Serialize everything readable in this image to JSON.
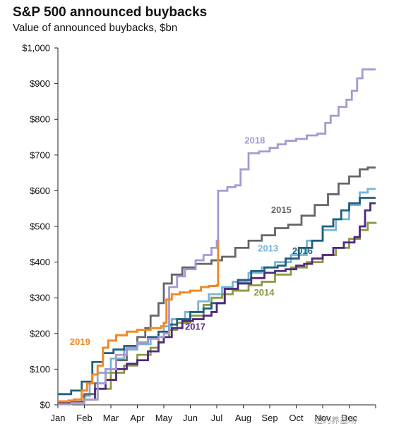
{
  "chart_data": {
    "type": "line",
    "title": "S&P 500 announced buybacks",
    "subtitle": "Value of announced buybacks, $bn",
    "xlabel": "",
    "ylabel": "",
    "x_ticks": [
      "Jan",
      "Feb",
      "Mar",
      "Apr",
      "May",
      "Jun",
      "Jul",
      "Aug",
      "Sep",
      "Oct",
      "Nov",
      "Dec"
    ],
    "y_ticks": [
      "$0",
      "$100",
      "$200",
      "$300",
      "$400",
      "$500",
      "$600",
      "$700",
      "$800",
      "$900",
      "$1,000"
    ],
    "xlim": [
      0,
      12
    ],
    "ylim": [
      0,
      1000
    ],
    "grid": false,
    "series": [
      {
        "name": "2013",
        "color": "#79b5d3",
        "label_pos": [
          7.55,
          430
        ],
        "points": [
          [
            0,
            5
          ],
          [
            0.5,
            8
          ],
          [
            0.9,
            25
          ],
          [
            1.2,
            60
          ],
          [
            1.5,
            90
          ],
          [
            2,
            130
          ],
          [
            2.5,
            155
          ],
          [
            3,
            170
          ],
          [
            3.5,
            190
          ],
          [
            3.8,
            205
          ],
          [
            4,
            220
          ],
          [
            4.3,
            240
          ],
          [
            4.8,
            260
          ],
          [
            5.3,
            290
          ],
          [
            5.7,
            310
          ],
          [
            6.2,
            330
          ],
          [
            6.6,
            345
          ],
          [
            7.2,
            370
          ],
          [
            7.7,
            385
          ],
          [
            8.2,
            400
          ],
          [
            8.8,
            420
          ],
          [
            9.4,
            460
          ],
          [
            10,
            490
          ],
          [
            10.5,
            520
          ],
          [
            11,
            560
          ],
          [
            11.4,
            595
          ],
          [
            11.7,
            605
          ],
          [
            12,
            605
          ]
        ]
      },
      {
        "name": "2014",
        "color": "#8d9a44",
        "label_pos": [
          7.4,
          306
        ],
        "points": [
          [
            0,
            5
          ],
          [
            0.5,
            6
          ],
          [
            1,
            15
          ],
          [
            1.5,
            45
          ],
          [
            2,
            90
          ],
          [
            2.5,
            110
          ],
          [
            3,
            140
          ],
          [
            3.5,
            160
          ],
          [
            3.8,
            190
          ],
          [
            4.2,
            210
          ],
          [
            4.5,
            230
          ],
          [
            5,
            250
          ],
          [
            5.5,
            280
          ],
          [
            5.8,
            300
          ],
          [
            6.2,
            310
          ],
          [
            6.6,
            320
          ],
          [
            7.2,
            335
          ],
          [
            7.7,
            345
          ],
          [
            8.2,
            365
          ],
          [
            8.8,
            385
          ],
          [
            9.4,
            400
          ],
          [
            10,
            420
          ],
          [
            10.5,
            440
          ],
          [
            11,
            465
          ],
          [
            11.4,
            490
          ],
          [
            11.7,
            510
          ],
          [
            12,
            512
          ]
        ]
      },
      {
        "name": "2015",
        "color": "#666666",
        "label_pos": [
          8.05,
          538
        ],
        "points": [
          [
            0,
            5
          ],
          [
            0.5,
            8
          ],
          [
            1,
            30
          ],
          [
            1.4,
            60
          ],
          [
            1.8,
            100
          ],
          [
            2.2,
            125
          ],
          [
            2.6,
            165
          ],
          [
            3,
            190
          ],
          [
            3.3,
            215
          ],
          [
            3.5,
            250
          ],
          [
            3.8,
            285
          ],
          [
            4,
            340
          ],
          [
            4.3,
            365
          ],
          [
            4.7,
            385
          ],
          [
            5.2,
            395
          ],
          [
            5.8,
            405
          ],
          [
            6.2,
            415
          ],
          [
            6.7,
            440
          ],
          [
            7.2,
            460
          ],
          [
            7.7,
            475
          ],
          [
            8.2,
            495
          ],
          [
            8.7,
            505
          ],
          [
            9.2,
            530
          ],
          [
            9.7,
            560
          ],
          [
            10.2,
            590
          ],
          [
            10.6,
            620
          ],
          [
            11,
            640
          ],
          [
            11.4,
            660
          ],
          [
            11.7,
            665
          ],
          [
            12,
            665
          ]
        ]
      },
      {
        "name": "2016",
        "color": "#1f5f7e",
        "label_pos": [
          8.85,
          423
        ],
        "points": [
          [
            0,
            30
          ],
          [
            0.5,
            40
          ],
          [
            0.9,
            65
          ],
          [
            1.3,
            120
          ],
          [
            1.7,
            145
          ],
          [
            2.1,
            155
          ],
          [
            2.5,
            165
          ],
          [
            3,
            175
          ],
          [
            3.4,
            190
          ],
          [
            3.8,
            205
          ],
          [
            4.2,
            225
          ],
          [
            4.5,
            240
          ],
          [
            5,
            260
          ],
          [
            5.5,
            270
          ],
          [
            5.8,
            285
          ],
          [
            6.3,
            325
          ],
          [
            6.8,
            350
          ],
          [
            7.3,
            375
          ],
          [
            7.8,
            385
          ],
          [
            8.3,
            390
          ],
          [
            8.6,
            410
          ],
          [
            9.1,
            440
          ],
          [
            9.6,
            460
          ],
          [
            10,
            500
          ],
          [
            10.4,
            520
          ],
          [
            10.7,
            545
          ],
          [
            11,
            565
          ],
          [
            11.4,
            580
          ],
          [
            11.7,
            580
          ],
          [
            12,
            580
          ]
        ]
      },
      {
        "name": "2017",
        "color": "#4e2a7e",
        "label_pos": [
          4.8,
          210
        ],
        "points": [
          [
            0,
            5
          ],
          [
            0.5,
            6
          ],
          [
            1,
            15
          ],
          [
            1.4,
            45
          ],
          [
            1.8,
            70
          ],
          [
            2.2,
            100
          ],
          [
            2.6,
            115
          ],
          [
            3,
            125
          ],
          [
            3.4,
            150
          ],
          [
            3.8,
            175
          ],
          [
            4,
            190
          ],
          [
            4.3,
            215
          ],
          [
            4.7,
            235
          ],
          [
            5.1,
            240
          ],
          [
            5.5,
            250
          ],
          [
            5.8,
            260
          ],
          [
            6,
            285
          ],
          [
            6.3,
            325
          ],
          [
            6.8,
            340
          ],
          [
            7.3,
            355
          ],
          [
            7.8,
            370
          ],
          [
            8.2,
            375
          ],
          [
            8.6,
            380
          ],
          [
            9,
            390
          ],
          [
            9.3,
            395
          ],
          [
            9.6,
            410
          ],
          [
            10,
            420
          ],
          [
            10.4,
            440
          ],
          [
            10.8,
            455
          ],
          [
            11.2,
            470
          ],
          [
            11.4,
            500
          ],
          [
            11.6,
            545
          ],
          [
            11.8,
            565
          ],
          [
            12,
            565
          ]
        ]
      },
      {
        "name": "2018",
        "color": "#a599d3",
        "label_pos": [
          7.05,
          732
        ],
        "points": [
          [
            0,
            2
          ],
          [
            0.5,
            5
          ],
          [
            1,
            15
          ],
          [
            1.5,
            60
          ],
          [
            1.8,
            100
          ],
          [
            2.2,
            140
          ],
          [
            2.6,
            160
          ],
          [
            3,
            175
          ],
          [
            3.4,
            185
          ],
          [
            3.8,
            190
          ],
          [
            4,
            200
          ],
          [
            4.2,
            330
          ],
          [
            4.5,
            360
          ],
          [
            4.8,
            380
          ],
          [
            5.2,
            405
          ],
          [
            5.5,
            420
          ],
          [
            5.8,
            440
          ],
          [
            6,
            460
          ],
          [
            6.05,
            600
          ],
          [
            6.4,
            610
          ],
          [
            6.7,
            615
          ],
          [
            6.9,
            660
          ],
          [
            7.2,
            705
          ],
          [
            7.6,
            710
          ],
          [
            8,
            720
          ],
          [
            8.3,
            730
          ],
          [
            8.6,
            740
          ],
          [
            9,
            745
          ],
          [
            9.4,
            755
          ],
          [
            9.8,
            760
          ],
          [
            10.1,
            790
          ],
          [
            10.3,
            810
          ],
          [
            10.6,
            835
          ],
          [
            10.9,
            855
          ],
          [
            11.1,
            880
          ],
          [
            11.3,
            915
          ],
          [
            11.5,
            940
          ],
          [
            12,
            940
          ]
        ]
      },
      {
        "name": "2019",
        "color": "#f08a24",
        "label_pos": [
          0.45,
          168
        ],
        "points": [
          [
            0,
            10
          ],
          [
            0.4,
            12
          ],
          [
            0.6,
            15
          ],
          [
            0.9,
            40
          ],
          [
            1.1,
            60
          ],
          [
            1.3,
            85
          ],
          [
            1.5,
            110
          ],
          [
            1.7,
            160
          ],
          [
            1.9,
            180
          ],
          [
            2.2,
            195
          ],
          [
            2.6,
            205
          ],
          [
            3,
            210
          ],
          [
            3.5,
            215
          ],
          [
            3.9,
            220
          ],
          [
            4,
            230
          ],
          [
            4.1,
            295
          ],
          [
            4.3,
            310
          ],
          [
            4.6,
            315
          ],
          [
            5,
            320
          ],
          [
            5.4,
            330
          ],
          [
            5.7,
            333
          ],
          [
            6,
            335
          ],
          [
            6.05,
            460
          ]
        ]
      }
    ]
  },
  "watermark": "纽约养基场"
}
